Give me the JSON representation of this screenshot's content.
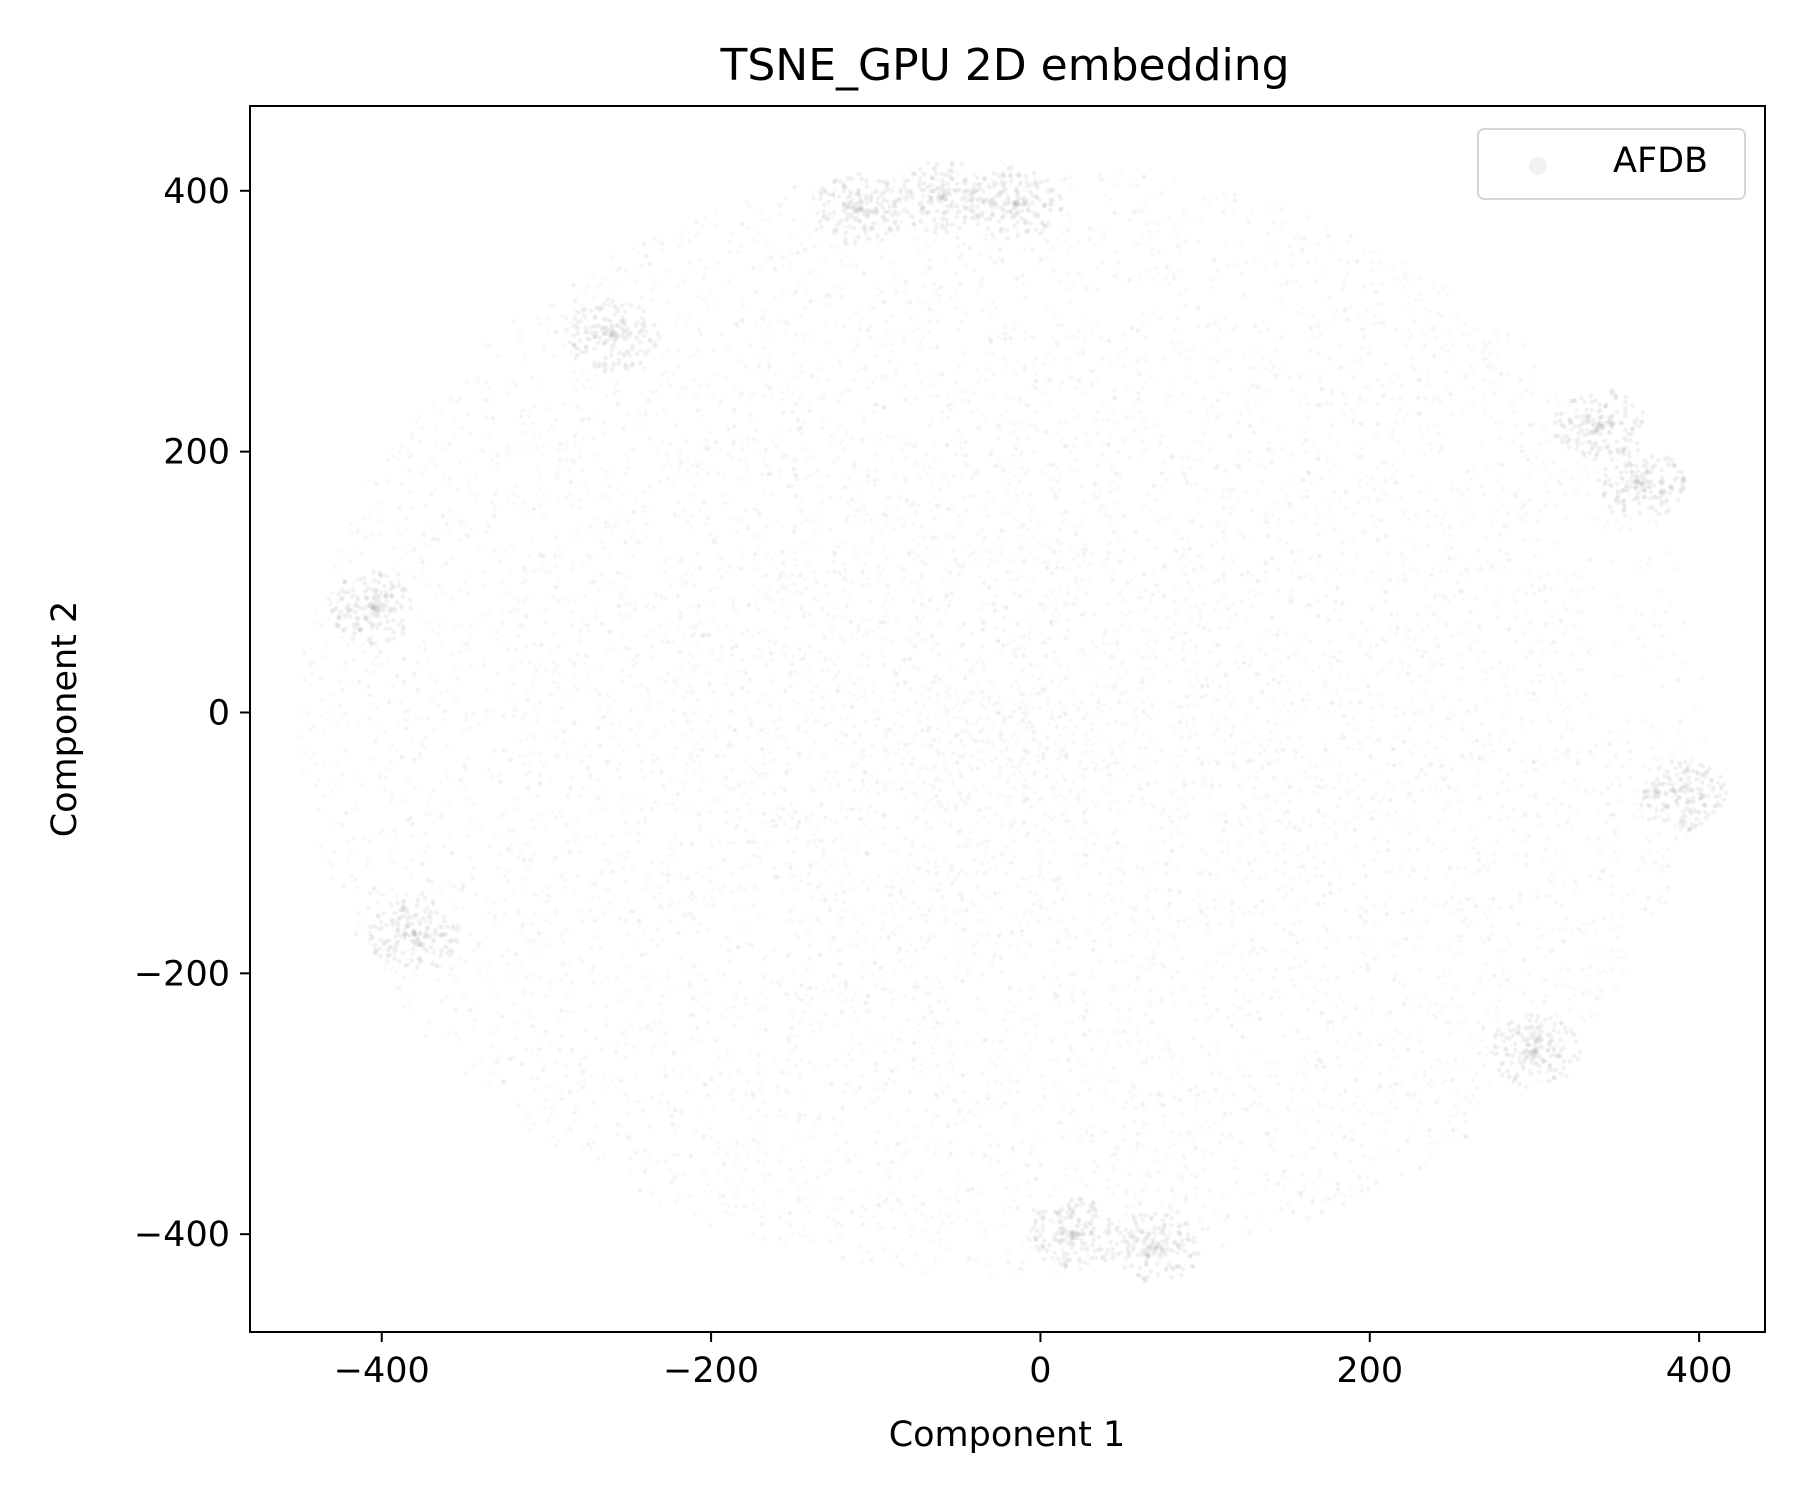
{
  "chart_data": {
    "type": "scatter",
    "title": "TSNE_GPU 2D embedding",
    "xlabel": "Component 1",
    "ylabel": "Component 2",
    "xlim": [
      -480,
      440
    ],
    "ylim": [
      -475,
      465
    ],
    "x_ticks": [
      -400,
      -200,
      0,
      200,
      400
    ],
    "x_tick_labels": [
      "−400",
      "−200",
      "0",
      "200",
      "400"
    ],
    "y_ticks": [
      -400,
      -200,
      0,
      200,
      400
    ],
    "y_tick_labels": [
      "−400",
      "−200",
      "0",
      "200",
      "400"
    ],
    "grid": false,
    "legend_position": "top-right",
    "series": [
      {
        "name": "AFDB",
        "color": "#b8b8b8",
        "point_opacity": 0.08,
        "region_extent": {
          "x_min": -450,
          "x_max": 405,
          "y_min": -432,
          "y_max": 422
        },
        "dense_clusters": [
          {
            "x": -60,
            "y": 395
          },
          {
            "x": -15,
            "y": 390
          },
          {
            "x": -110,
            "y": 385
          },
          {
            "x": -260,
            "y": 290
          },
          {
            "x": 340,
            "y": 220
          },
          {
            "x": 365,
            "y": 175
          },
          {
            "x": 390,
            "y": -65
          },
          {
            "x": -405,
            "y": 80
          },
          {
            "x": -380,
            "y": -170
          },
          {
            "x": 300,
            "y": -260
          },
          {
            "x": 70,
            "y": -410
          },
          {
            "x": 20,
            "y": -400
          }
        ]
      }
    ]
  }
}
